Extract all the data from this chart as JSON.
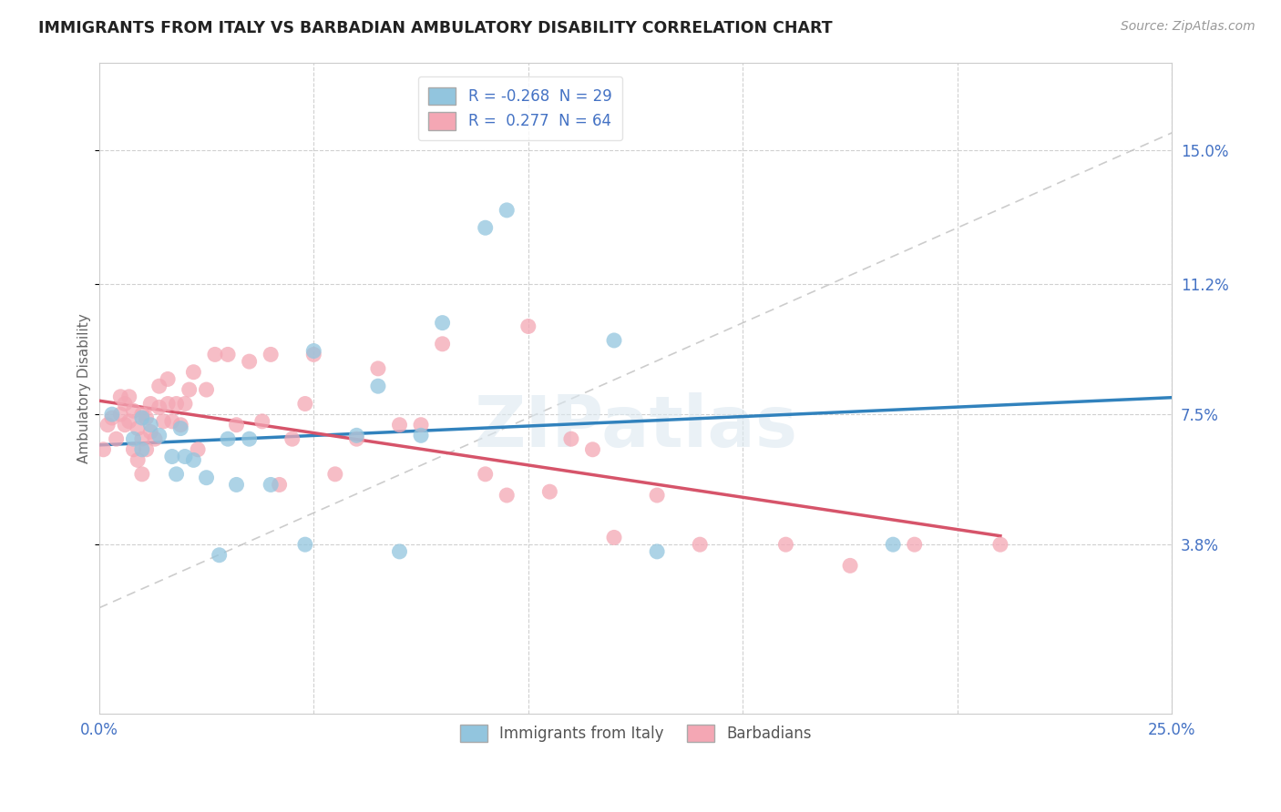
{
  "title": "IMMIGRANTS FROM ITALY VS BARBADIAN AMBULATORY DISABILITY CORRELATION CHART",
  "source": "Source: ZipAtlas.com",
  "ylabel": "Ambulatory Disability",
  "xlim": [
    0.0,
    0.25
  ],
  "ylim": [
    -0.01,
    0.175
  ],
  "yticks": [
    0.038,
    0.075,
    0.112,
    0.15
  ],
  "ytick_labels": [
    "3.8%",
    "7.5%",
    "11.2%",
    "15.0%"
  ],
  "xticks": [
    0.0,
    0.05,
    0.1,
    0.15,
    0.2,
    0.25
  ],
  "xtick_labels": [
    "0.0%",
    "",
    "",
    "",
    "",
    "25.0%"
  ],
  "legend_r_italy": "-0.268",
  "legend_n_italy": "29",
  "legend_r_barbadian": "0.277",
  "legend_n_barbadian": "64",
  "blue_color": "#92c5de",
  "pink_color": "#f4a7b4",
  "blue_line_color": "#3182bd",
  "pink_line_color": "#d6546a",
  "dashed_line_color": "#c0c0c0",
  "watermark": "ZIPatlas",
  "italy_x": [
    0.003,
    0.008,
    0.01,
    0.01,
    0.012,
    0.014,
    0.017,
    0.018,
    0.019,
    0.02,
    0.022,
    0.025,
    0.028,
    0.03,
    0.032,
    0.035,
    0.04,
    0.048,
    0.05,
    0.06,
    0.065,
    0.07,
    0.075,
    0.08,
    0.09,
    0.095,
    0.12,
    0.13,
    0.185
  ],
  "italy_y": [
    0.075,
    0.068,
    0.065,
    0.074,
    0.072,
    0.069,
    0.063,
    0.058,
    0.071,
    0.063,
    0.062,
    0.057,
    0.035,
    0.068,
    0.055,
    0.068,
    0.055,
    0.038,
    0.093,
    0.069,
    0.083,
    0.036,
    0.069,
    0.101,
    0.128,
    0.133,
    0.096,
    0.036,
    0.038
  ],
  "barbadian_x": [
    0.001,
    0.002,
    0.003,
    0.004,
    0.005,
    0.005,
    0.006,
    0.006,
    0.007,
    0.007,
    0.008,
    0.008,
    0.009,
    0.009,
    0.01,
    0.01,
    0.01,
    0.011,
    0.011,
    0.012,
    0.012,
    0.013,
    0.014,
    0.014,
    0.015,
    0.016,
    0.016,
    0.017,
    0.018,
    0.019,
    0.02,
    0.021,
    0.022,
    0.023,
    0.025,
    0.027,
    0.03,
    0.032,
    0.035,
    0.038,
    0.04,
    0.042,
    0.045,
    0.048,
    0.05,
    0.055,
    0.06,
    0.065,
    0.07,
    0.075,
    0.08,
    0.09,
    0.095,
    0.1,
    0.105,
    0.11,
    0.115,
    0.12,
    0.13,
    0.14,
    0.16,
    0.175,
    0.19,
    0.21
  ],
  "barbadian_y": [
    0.065,
    0.072,
    0.074,
    0.068,
    0.075,
    0.08,
    0.072,
    0.078,
    0.073,
    0.08,
    0.065,
    0.076,
    0.062,
    0.071,
    0.058,
    0.068,
    0.075,
    0.065,
    0.074,
    0.07,
    0.078,
    0.068,
    0.077,
    0.083,
    0.073,
    0.078,
    0.085,
    0.073,
    0.078,
    0.072,
    0.078,
    0.082,
    0.087,
    0.065,
    0.082,
    0.092,
    0.092,
    0.072,
    0.09,
    0.073,
    0.092,
    0.055,
    0.068,
    0.078,
    0.092,
    0.058,
    0.068,
    0.088,
    0.072,
    0.072,
    0.095,
    0.058,
    0.052,
    0.1,
    0.053,
    0.068,
    0.065,
    0.04,
    0.052,
    0.038,
    0.038,
    0.032,
    0.038,
    0.038
  ]
}
